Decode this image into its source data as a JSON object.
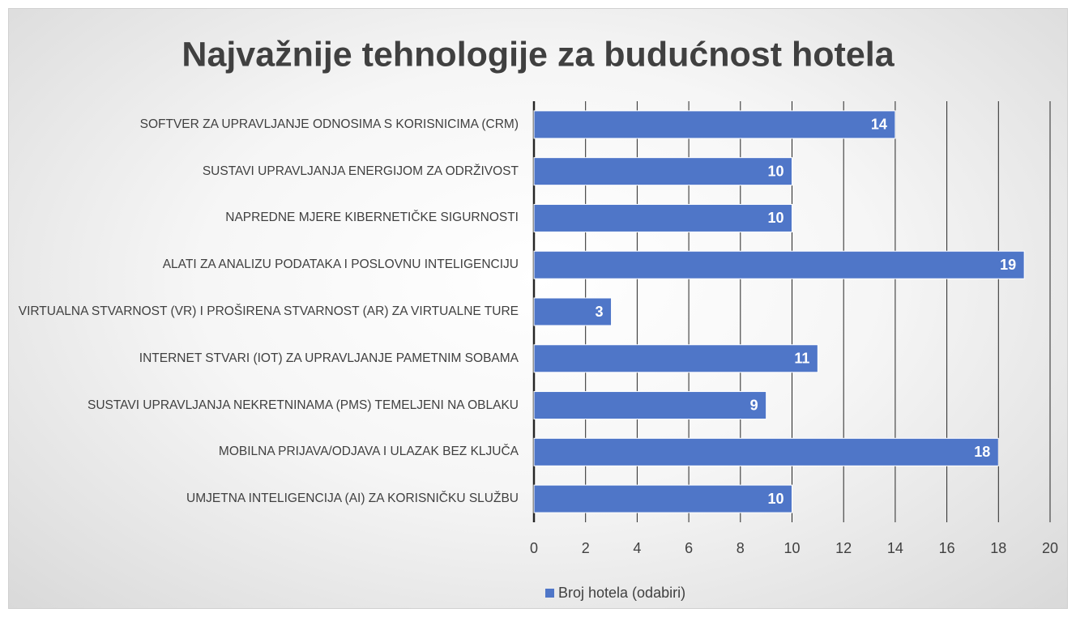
{
  "chart_data": {
    "type": "bar",
    "orientation": "horizontal",
    "title": "Najvažnije tehnologije za budućnost hotela",
    "categories": [
      "SOFTVER ZA UPRAVLJANJE ODNOSIMA S KORISNICIMA (CRM)",
      "SUSTAVI UPRAVLJANJA ENERGIJOM ZA ODRŽIVOST",
      "NAPREDNE MJERE KIBERNETIČKE SIGURNOSTI",
      "ALATI ZA ANALIZU PODATAKA I POSLOVNU INTELIGENCIJU",
      "VIRTUALNA STVARNOST (VR) I PROŠIRENA STVARNOST (AR) ZA VIRTUALNE TURE",
      "INTERNET STVARI (IOT) ZA UPRAVLJANJE PAMETNIM SOBAMA",
      "SUSTAVI UPRAVLJANJA NEKRETNINAMA (PMS) TEMELJENI NA OBLAKU",
      "MOBILNA PRIJAVA/ODJAVA I ULAZAK BEZ KLJUČA",
      "UMJETNA INTELIGENCIJA (AI) ZA KORISNIČKU SLUŽBU"
    ],
    "series": [
      {
        "name": "Broj hotela (odabiri)",
        "color": "#4f76c8",
        "values": [
          14,
          10,
          10,
          19,
          3,
          11,
          9,
          18,
          10
        ]
      }
    ],
    "xlim": [
      0,
      20
    ],
    "xticks": [
      0,
      2,
      4,
      6,
      8,
      10,
      12,
      14,
      16,
      18,
      20
    ],
    "grid": true,
    "legend": "bottom"
  }
}
